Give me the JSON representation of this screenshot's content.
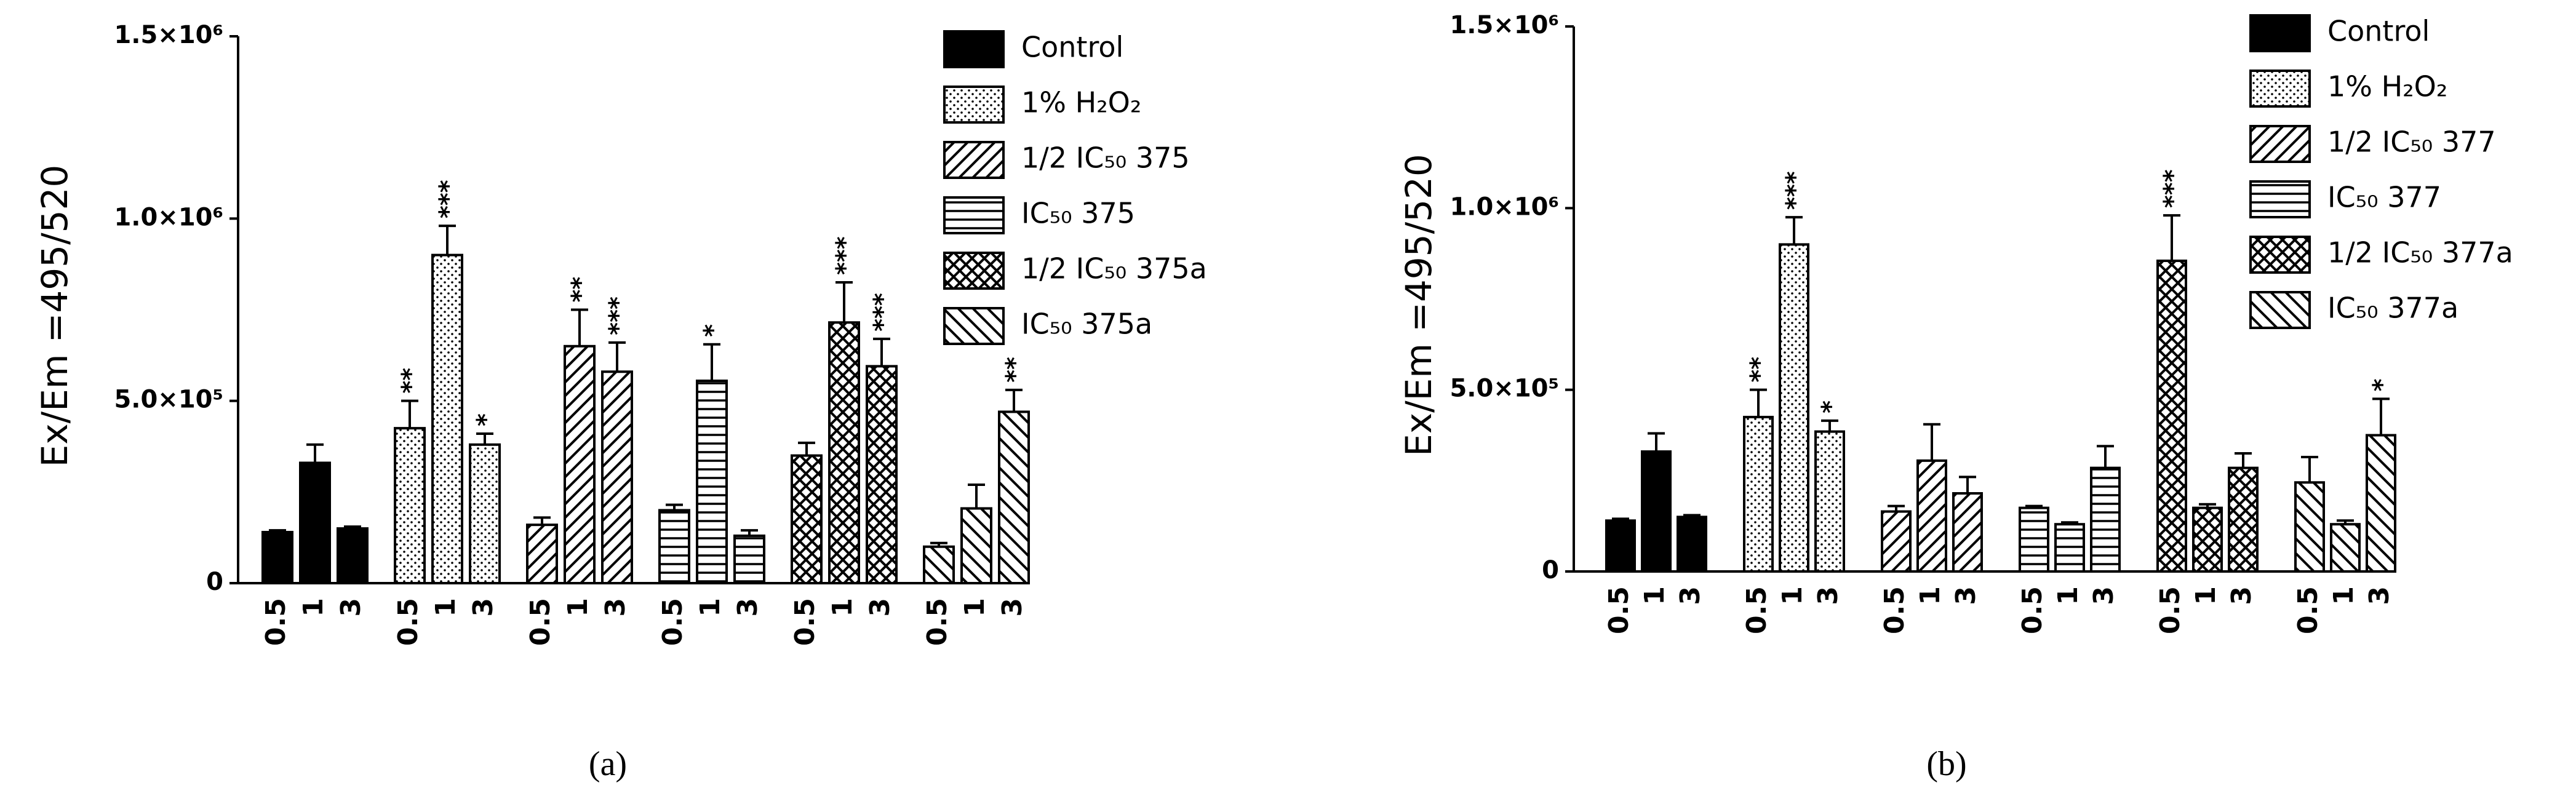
{
  "chart_data": [
    {
      "type": "bar",
      "caption": "(a)",
      "y_label": "Ex/Em =495/520",
      "categories": [
        "0.5",
        "1",
        "3",
        "0.5",
        "1",
        "3",
        "0.5",
        "1",
        "3",
        "0.5",
        "1",
        "3",
        "0.5",
        "1",
        "3",
        "0.5",
        "1",
        "3"
      ],
      "ylim": [
        0,
        1500000
      ],
      "yticks": [
        0,
        {
          "value": 500000,
          "label": "5.0×10⁵"
        },
        {
          "value": 1000000,
          "label": "1.0×10⁶"
        },
        {
          "value": 1500000,
          "label": "1.5×10⁶"
        }
      ],
      "series": [
        {
          "name": "Control",
          "color": "#000000",
          "pattern": "solid",
          "values": [
            140000,
            330000,
            150000,
            null,
            null,
            null,
            null,
            null,
            null,
            null,
            null,
            null,
            null,
            null,
            null,
            null,
            null,
            null
          ],
          "errors": [
            5000,
            50000,
            5000,
            null,
            null,
            null,
            null,
            null,
            null,
            null,
            null,
            null,
            null,
            null,
            null,
            null,
            null,
            null
          ],
          "annotations": [
            null,
            null,
            null,
            null,
            null,
            null,
            null,
            null,
            null,
            null,
            null,
            null,
            null,
            null,
            null,
            null,
            null,
            null
          ]
        },
        {
          "name": "1% H₂O₂",
          "color": "#000000",
          "pattern": "dots",
          "values": [
            null,
            null,
            null,
            425000,
            900000,
            380000,
            null,
            null,
            null,
            null,
            null,
            null,
            null,
            null,
            null,
            null,
            null,
            null
          ],
          "errors": [
            null,
            null,
            null,
            75000,
            80000,
            30000,
            null,
            null,
            null,
            null,
            null,
            null,
            null,
            null,
            null,
            null,
            null,
            null
          ],
          "annotations": [
            null,
            null,
            null,
            "**",
            "***",
            "*",
            null,
            null,
            null,
            null,
            null,
            null,
            null,
            null,
            null,
            null,
            null,
            null
          ]
        },
        {
          "name": "1/2 IC₅₀ 375",
          "color": "#000000",
          "pattern": "diagonal",
          "values": [
            null,
            null,
            null,
            null,
            null,
            null,
            160000,
            650000,
            580000,
            null,
            null,
            null,
            null,
            null,
            null,
            null,
            null,
            null
          ],
          "errors": [
            null,
            null,
            null,
            null,
            null,
            null,
            20000,
            100000,
            80000,
            null,
            null,
            null,
            null,
            null,
            null,
            null,
            null,
            null
          ],
          "annotations": [
            null,
            null,
            null,
            null,
            null,
            null,
            null,
            "**",
            "***",
            null,
            null,
            null,
            null,
            null,
            null,
            null,
            null,
            null
          ]
        },
        {
          "name": "IC₅₀ 375",
          "color": "#000000",
          "pattern": "horizontal",
          "values": [
            null,
            null,
            null,
            null,
            null,
            null,
            null,
            null,
            null,
            200000,
            555000,
            130000,
            null,
            null,
            null,
            null,
            null,
            null
          ],
          "errors": [
            null,
            null,
            null,
            null,
            null,
            null,
            null,
            null,
            null,
            15000,
            100000,
            15000,
            null,
            null,
            null,
            null,
            null,
            null
          ],
          "annotations": [
            null,
            null,
            null,
            null,
            null,
            null,
            null,
            null,
            null,
            null,
            "*",
            null,
            null,
            null,
            null,
            null,
            null,
            null
          ]
        },
        {
          "name": "1/2 IC₅₀ 375a",
          "color": "#000000",
          "pattern": "crosshatch",
          "values": [
            null,
            null,
            null,
            null,
            null,
            null,
            null,
            null,
            null,
            null,
            null,
            null,
            350000,
            715000,
            595000,
            null,
            null,
            null
          ],
          "errors": [
            null,
            null,
            null,
            null,
            null,
            null,
            null,
            null,
            null,
            null,
            null,
            null,
            35000,
            110000,
            75000,
            null,
            null,
            null
          ],
          "annotations": [
            null,
            null,
            null,
            null,
            null,
            null,
            null,
            null,
            null,
            null,
            null,
            null,
            null,
            "***",
            "***",
            null,
            null,
            null
          ]
        },
        {
          "name": "IC₅₀ 375a",
          "color": "#000000",
          "pattern": "backdiagonal",
          "values": [
            null,
            null,
            null,
            null,
            null,
            null,
            null,
            null,
            null,
            null,
            null,
            null,
            null,
            null,
            null,
            100000,
            205000,
            470000
          ],
          "errors": [
            null,
            null,
            null,
            null,
            null,
            null,
            null,
            null,
            null,
            null,
            null,
            null,
            null,
            null,
            null,
            10000,
            65000,
            60000
          ],
          "annotations": [
            null,
            null,
            null,
            null,
            null,
            null,
            null,
            null,
            null,
            null,
            null,
            null,
            null,
            null,
            null,
            null,
            null,
            "**"
          ]
        }
      ]
    },
    {
      "type": "bar",
      "caption": "(b)",
      "y_label": "Ex/Em =495/520",
      "categories": [
        "0.5",
        "1",
        "3",
        "0.5",
        "1",
        "3",
        "0.5",
        "1",
        "3",
        "0.5",
        "1",
        "3",
        "0.5",
        "1",
        "3",
        "0.5",
        "1",
        "3"
      ],
      "ylim": [
        0,
        1500000
      ],
      "yticks": [
        0,
        {
          "value": 500000,
          "label": "5.0×10⁵"
        },
        {
          "value": 1000000,
          "label": "1.0×10⁶"
        },
        {
          "value": 1500000,
          "label": "1.5×10⁶"
        }
      ],
      "series": [
        {
          "name": "Control",
          "color": "#000000",
          "pattern": "solid",
          "values": [
            140000,
            330000,
            150000,
            null,
            null,
            null,
            null,
            null,
            null,
            null,
            null,
            null,
            null,
            null,
            null,
            null,
            null,
            null
          ],
          "errors": [
            5000,
            50000,
            5000,
            null,
            null,
            null,
            null,
            null,
            null,
            null,
            null,
            null,
            null,
            null,
            null,
            null,
            null,
            null
          ],
          "annotations": [
            null,
            null,
            null,
            null,
            null,
            null,
            null,
            null,
            null,
            null,
            null,
            null,
            null,
            null,
            null,
            null,
            null,
            null
          ]
        },
        {
          "name": "1% H₂O₂",
          "color": "#000000",
          "pattern": "dots",
          "values": [
            null,
            null,
            null,
            425000,
            900000,
            385000,
            null,
            null,
            null,
            null,
            null,
            null,
            null,
            null,
            null,
            null,
            null,
            null
          ],
          "errors": [
            null,
            null,
            null,
            75000,
            75000,
            30000,
            null,
            null,
            null,
            null,
            null,
            null,
            null,
            null,
            null,
            null,
            null,
            null
          ],
          "annotations": [
            null,
            null,
            null,
            "**",
            "***",
            "*",
            null,
            null,
            null,
            null,
            null,
            null,
            null,
            null,
            null,
            null,
            null,
            null
          ]
        },
        {
          "name": "1/2 IC₅₀ 377",
          "color": "#000000",
          "pattern": "diagonal",
          "values": [
            null,
            null,
            null,
            null,
            null,
            null,
            165000,
            305000,
            215000,
            null,
            null,
            null,
            null,
            null,
            null,
            null,
            null,
            null
          ],
          "errors": [
            null,
            null,
            null,
            null,
            null,
            null,
            15000,
            100000,
            45000,
            null,
            null,
            null,
            null,
            null,
            null,
            null,
            null,
            null
          ],
          "annotations": [
            null,
            null,
            null,
            null,
            null,
            null,
            null,
            null,
            null,
            null,
            null,
            null,
            null,
            null,
            null,
            null,
            null,
            null
          ]
        },
        {
          "name": "IC₅₀ 377",
          "color": "#000000",
          "pattern": "horizontal",
          "values": [
            null,
            null,
            null,
            null,
            null,
            null,
            null,
            null,
            null,
            175000,
            130000,
            285000,
            null,
            null,
            null,
            null,
            null,
            null
          ],
          "errors": [
            null,
            null,
            null,
            null,
            null,
            null,
            null,
            null,
            null,
            5000,
            5000,
            60000,
            null,
            null,
            null,
            null,
            null,
            null
          ],
          "annotations": [
            null,
            null,
            null,
            null,
            null,
            null,
            null,
            null,
            null,
            null,
            null,
            null,
            null,
            null,
            null,
            null,
            null,
            null
          ]
        },
        {
          "name": "1/2 IC₅₀ 377a",
          "color": "#000000",
          "pattern": "crosshatch",
          "values": [
            null,
            null,
            null,
            null,
            null,
            null,
            null,
            null,
            null,
            null,
            null,
            null,
            855000,
            175000,
            285000,
            null,
            null,
            null
          ],
          "errors": [
            null,
            null,
            null,
            null,
            null,
            null,
            null,
            null,
            null,
            null,
            null,
            null,
            125000,
            10000,
            40000,
            null,
            null,
            null
          ],
          "annotations": [
            null,
            null,
            null,
            null,
            null,
            null,
            null,
            null,
            null,
            null,
            null,
            null,
            "***",
            null,
            null,
            null,
            null,
            null
          ]
        },
        {
          "name": "IC₅₀ 377a",
          "color": "#000000",
          "pattern": "backdiagonal",
          "values": [
            null,
            null,
            null,
            null,
            null,
            null,
            null,
            null,
            null,
            null,
            null,
            null,
            null,
            null,
            null,
            245000,
            130000,
            375000
          ],
          "errors": [
            null,
            null,
            null,
            null,
            null,
            null,
            null,
            null,
            null,
            null,
            null,
            null,
            null,
            null,
            null,
            70000,
            10000,
            100000
          ],
          "annotations": [
            null,
            null,
            null,
            null,
            null,
            null,
            null,
            null,
            null,
            null,
            null,
            null,
            null,
            null,
            null,
            null,
            null,
            "*"
          ]
        }
      ]
    }
  ]
}
